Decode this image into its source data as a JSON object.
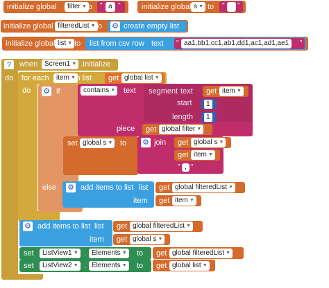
{
  "init1": {
    "keyword": "initialize global",
    "name": "filter",
    "to": "to",
    "value": "a"
  },
  "init2": {
    "keyword": "initialize global",
    "name": "s",
    "to": "to",
    "value": ""
  },
  "init3": {
    "keyword": "initialize global",
    "name": "filteredList",
    "to": "to",
    "value_block": "create empty list"
  },
  "init4": {
    "keyword": "initialize global",
    "name": "list",
    "to": "to",
    "value_block": "list from csv row",
    "text_label": "text",
    "csv": "aa1,bb1,cc1,ab1,dd1,ac1,ad1,ae1"
  },
  "event": {
    "when": "when",
    "component": "Screen1",
    "event_name": ".Initialize",
    "do": "do",
    "foreach": {
      "label": "for each",
      "var": "item",
      "in_list": "in list",
      "get": "get",
      "list_var": "global list",
      "do": "do"
    },
    "if_block": {
      "if": "if",
      "contains": "contains",
      "text": "text",
      "segment": "segment",
      "segment_text": "text",
      "get": "get",
      "item": "item",
      "start": "start",
      "start_val": "1",
      "length": "length",
      "length_val": "1",
      "piece": "piece",
      "piece_var": "global filter"
    },
    "then": {
      "label": "then",
      "set": "set",
      "set_var": "global s",
      "to": "to",
      "join": "join",
      "get": "get",
      "join_a": "global s",
      "join_b": "item",
      "join_c": ","
    },
    "else": {
      "label": "else",
      "add_items": "add items to list",
      "list": "list",
      "get": "get",
      "list_var": "global filteredList",
      "item": "item",
      "item_var": "item"
    },
    "add_after": {
      "add_items": "add items to list",
      "list": "list",
      "get": "get",
      "list_var": "global filteredList",
      "item": "item",
      "item_var": "global s"
    },
    "set1": {
      "set": "set",
      "component": "ListView1",
      "prop": "Elements",
      "to": "to",
      "get": "get",
      "var": "global filteredList"
    },
    "set2": {
      "set": "set",
      "component": "ListView2",
      "prop": "Elements",
      "to": "to",
      "get": "get",
      "var": "global list"
    }
  },
  "colors": {
    "variables": "#d46a2c",
    "control": "#c89f38",
    "lists": "#3ba0e0",
    "text": "#bf2e6b",
    "procedures": "#8a4fb8",
    "components": "#2f8e52",
    "math": "#3a5eab"
  }
}
